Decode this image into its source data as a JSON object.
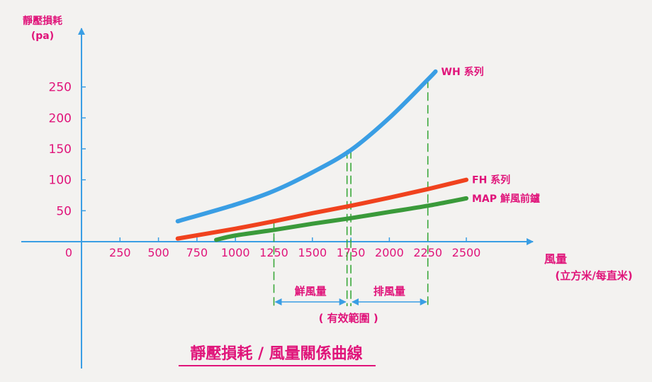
{
  "chart_data": {
    "type": "line",
    "title": "靜壓損耗 / 風量關係曲線",
    "ylabel": "靜壓損耗",
    "yunit": "(pa)",
    "xlabel": "風量",
    "xunit": "(立方米/每直米)",
    "xlim": [
      0,
      2700
    ],
    "ylim": [
      0,
      300
    ],
    "x_ticks": [
      0,
      250,
      500,
      750,
      1000,
      1250,
      1500,
      1750,
      2000,
      2250,
      2500
    ],
    "y_ticks": [
      50,
      100,
      150,
      200,
      250
    ],
    "series": [
      {
        "name": "WH 系列",
        "color": "#3a9ee4",
        "points": [
          [
            625,
            33
          ],
          [
            1000,
            60
          ],
          [
            1250,
            82
          ],
          [
            1500,
            112
          ],
          [
            1750,
            148
          ],
          [
            2000,
            200
          ],
          [
            2250,
            262
          ],
          [
            2300,
            275
          ]
        ]
      },
      {
        "name": "FH 系列",
        "color": "#f0421e",
        "points": [
          [
            625,
            5
          ],
          [
            1000,
            21
          ],
          [
            1250,
            33
          ],
          [
            1500,
            46
          ],
          [
            1750,
            58
          ],
          [
            2000,
            71
          ],
          [
            2250,
            85
          ],
          [
            2500,
            100
          ]
        ]
      },
      {
        "name": "MAP 鮮風前鑪",
        "color": "#3a9a3a",
        "points": [
          [
            875,
            3
          ],
          [
            1000,
            10
          ],
          [
            1250,
            19
          ],
          [
            1500,
            29
          ],
          [
            1750,
            38
          ],
          [
            2000,
            48
          ],
          [
            2250,
            58
          ],
          [
            2500,
            70
          ]
        ]
      }
    ],
    "reference_lines_x": [
      1250,
      1725,
      1750,
      2250
    ],
    "ranges": [
      {
        "label": "鮮風量",
        "from": 1250,
        "to": 1725
      },
      {
        "label": "排風量",
        "from": 1750,
        "to": 2250
      }
    ],
    "range_caption": "( 有效範圍 )",
    "grid": false,
    "legend": "labels at line ends (right)"
  }
}
